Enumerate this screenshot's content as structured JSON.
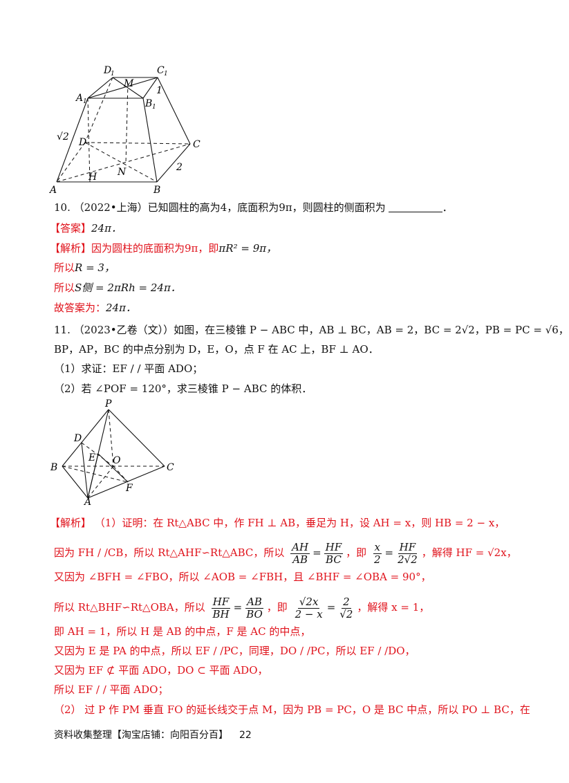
{
  "figure1": {
    "labels": {
      "D1": "D",
      "D1sub": "1",
      "C1": "C",
      "C1sub": "1",
      "A1": "A",
      "A1sub": "1",
      "B1": "B",
      "B1sub": "1",
      "M": "M",
      "one": "1",
      "sqrt2": "√2",
      "D": "D",
      "C": "C",
      "N": "N",
      "two": "2",
      "H": "H",
      "A": "A",
      "B": "B"
    }
  },
  "q10": {
    "stem": "10. （2022•上海）已知圆柱的高为4，底面积为9π，则圆柱的侧面积为",
    "answer_tag": "【答案】",
    "answer_value": "24π．",
    "analysis_tag": "【解析】",
    "analysis_text": "因为圆柱的底面积为9π，即",
    "analysis_math": "πR² = 9π，",
    "line2_text": "所以",
    "line2_math": "R = 3，",
    "line3_text": "所以",
    "line3_math": "S侧 = 2πRh = 24π．",
    "line4_text": "故答案为：",
    "line4_math": "24π．"
  },
  "q11": {
    "stem1": "11. （2023•乙卷（文））如图，在三棱锥 P − ABC 中，AB ⊥ BC，AB = 2，BC = 2√2，PB = PC = √6，",
    "stem2": "BP，AP，BC 的中点分别为 D，E，O，点 F 在 AC 上，BF ⊥ AO．",
    "part1": "（1）求证：EF / / 平面 ADO；",
    "part2": "（2）若 ∠POF = 120°，求三棱锥 P − ABC 的体积．"
  },
  "figure2": {
    "labels": {
      "P": "P",
      "D": "D",
      "E": "E",
      "O": "O",
      "B": "B",
      "C": "C",
      "F": "F",
      "A": "A"
    }
  },
  "solution": {
    "tag": "【解析】",
    "l1": "（1）证明：在 Rt△ABC 中，作 FH ⊥ AB，垂足为 H，设 AH = x，则 HB = 2 − x，",
    "l2_a": "因为 FH / /CB，所以 Rt△AHF∽Rt△ABC，所以",
    "l2_f1_num": "AH",
    "l2_f1_den": "AB",
    "l2_eq": "=",
    "l2_f2_num": "HF",
    "l2_f2_den": "BC",
    "l2_b": "，即",
    "l2_f3_num": "x",
    "l2_f3_den": "2",
    "l2_f4_num": "HF",
    "l2_f4_den": "2√2",
    "l2_c": "，解得 HF = √2x，",
    "l3": "又因为 ∠BFH = ∠FBO，所以 ∠AOB = ∠FBH，且 ∠BHF = ∠OBA = 90°，",
    "l4_a": "所以 Rt△BHF∽Rt△OBA，所以",
    "l4_f1_num": "HF",
    "l4_f1_den": "BH",
    "l4_f2_num": "AB",
    "l4_f2_den": "BO",
    "l4_b": "，即",
    "l4_f3_num": "√2x",
    "l4_f3_den": "2 − x",
    "l4_f4_num": "2",
    "l4_f4_den": "√2",
    "l4_c": "，解得 x = 1，",
    "l5": "即 AH = 1，所以 H 是 AB 的中点，F 是 AC 的中点，",
    "l6": "又因为 E 是 PA 的中点，所以 EF / /PC，同理，DO / /PC，所以 EF / /DO，",
    "l7": "又因为 EF ⊄ 平面 ADO，DO ⊂ 平面 ADO，",
    "l8": "所以 EF / / 平面 ADO；",
    "l9": "（2） 过 P 作 PM 垂直 FO 的延长线交于点 M，因为 PB = PC，O 是 BC 中点，所以 PO ⊥ BC，在"
  },
  "footer": {
    "source": "资料收集整理【淘宝店铺：向阳百分百】",
    "page": "22"
  }
}
